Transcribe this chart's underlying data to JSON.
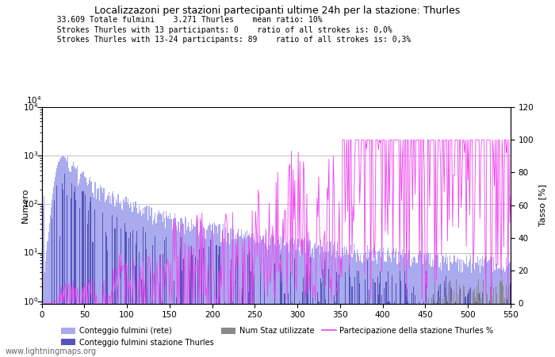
{
  "title": "Localizzazoni per stazioni partecipanti ultime 24h per la stazione: Thurles",
  "info_lines": [
    "  33.609 Totale fulmini    3.271 Thurles    mean ratio: 10%",
    "  Strokes Thurles with 13 participants: 0    ratio of all strokes is: 0,0%",
    "  Strokes Thurles with 13-24 participants: 89    ratio of all strokes is: 0,3%"
  ],
  "ylabel_left": "Numero",
  "ylabel_right": "Tasso [%]",
  "xlim": [
    0,
    550
  ],
  "ylim_right": [
    0,
    120
  ],
  "right_yticks": [
    0,
    20,
    40,
    60,
    80,
    100,
    120
  ],
  "xticks": [
    0,
    50,
    100,
    150,
    200,
    250,
    300,
    350,
    400,
    450,
    500,
    550
  ],
  "color_light_blue": "#aaaaee",
  "color_dark_blue": "#5555bb",
  "color_pink": "#ee44ee",
  "color_dark_gray": "#888888",
  "color_grid": "#aaaaaa",
  "watermark": "www.lightningmaps.org"
}
